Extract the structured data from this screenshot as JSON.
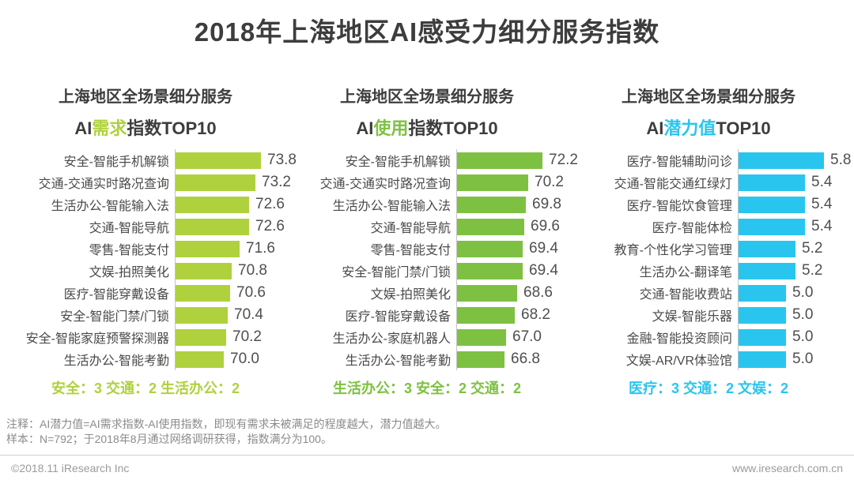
{
  "title": "2018年上海地区AI感受力细分服务指数",
  "chart_data": [
    {
      "type": "bar",
      "orientation": "horizontal",
      "subtitle": "上海地区全场景细分服务",
      "title_prefix": "AI",
      "title_highlight": "需求",
      "title_suffix": "指数TOP10",
      "accent_color": "#afd13e",
      "categories": [
        "安全-智能手机解锁",
        "交通-交通实时路况查询",
        "生活办公-智能输入法",
        "交通-智能导航",
        "零售-智能支付",
        "文娱-拍照美化",
        "医疗-智能穿戴设备",
        "安全-智能门禁/门锁",
        "安全-智能家庭预警探测器",
        "生活办公-智能考勤"
      ],
      "values": [
        73.8,
        73.2,
        72.6,
        72.6,
        71.6,
        70.8,
        70.6,
        70.4,
        70.2,
        70.0
      ],
      "xlim": [
        65,
        73.8
      ],
      "grid": false,
      "summary": "安全：3  交通：2 生活办公：2"
    },
    {
      "type": "bar",
      "orientation": "horizontal",
      "subtitle": "上海地区全场景细分服务",
      "title_prefix": "AI",
      "title_highlight": "使用",
      "title_suffix": "指数TOP10",
      "accent_color": "#7ec142",
      "categories": [
        "安全-智能手机解锁",
        "交通-交通实时路况查询",
        "生活办公-智能输入法",
        "交通-智能导航",
        "零售-智能支付",
        "安全-智能门禁/门锁",
        "文娱-拍照美化",
        "医疗-智能穿戴设备",
        "生活办公-家庭机器人",
        "生活办公-智能考勤"
      ],
      "values": [
        72.2,
        70.2,
        69.8,
        69.6,
        69.4,
        69.4,
        68.6,
        68.2,
        67.0,
        66.8
      ],
      "xlim": [
        60,
        72.2
      ],
      "grid": false,
      "summary": "生活办公：3  安全：2 交通：2"
    },
    {
      "type": "bar",
      "orientation": "horizontal",
      "subtitle": "上海地区全场景细分服务",
      "title_prefix": "AI",
      "title_highlight": "潜力值",
      "title_suffix": "TOP10",
      "accent_color": "#29c5ee",
      "categories": [
        "医疗-智能辅助问诊",
        "交通-智能交通红绿灯",
        "医疗-智能饮食管理",
        "医疗-智能体检",
        "教育-个性化学习管理",
        "生活办公-翻译笔",
        "交通-智能收费站",
        "文娱-智能乐器",
        "金融-智能投资顾问",
        "文娱-AR/VR体验馆"
      ],
      "values": [
        5.8,
        5.4,
        5.4,
        5.4,
        5.2,
        5.2,
        5.0,
        5.0,
        5.0,
        5.0
      ],
      "xlim": [
        4.0,
        5.8
      ],
      "grid": false,
      "summary": "医疗：3  交通：2 文娱：2"
    }
  ],
  "notes": [
    "注释：AI潜力值=AI需求指数-AI使用指数，即现有需求未被满足的程度越大，潜力值越大。",
    "样本：N=792；于2018年8月通过网络调研获得，指数满分为100。"
  ],
  "footer": {
    "left": "©2018.11 iResearch Inc",
    "right": "www.iresearch.com.cn"
  }
}
